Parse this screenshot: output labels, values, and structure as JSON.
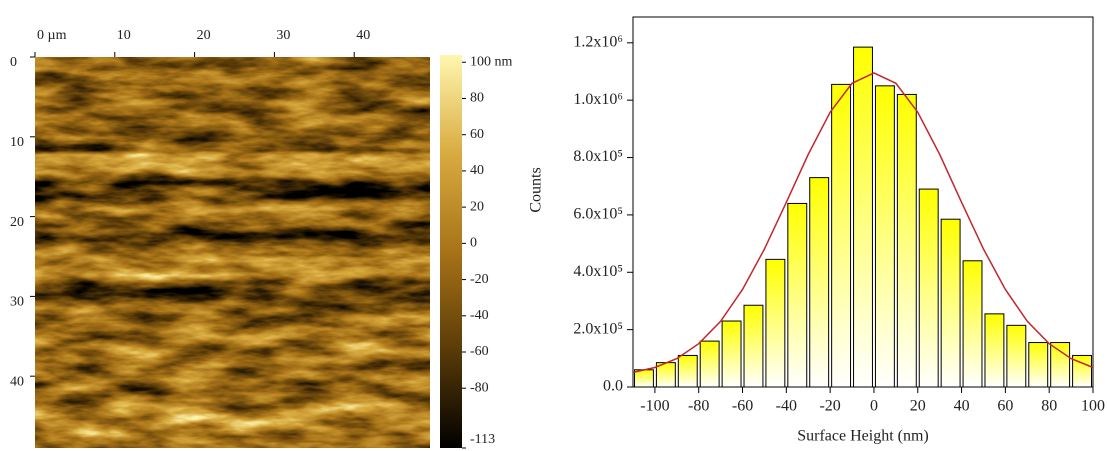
{
  "chart_data": [
    {
      "type": "image",
      "xlim": [
        0,
        49.5
      ],
      "ylim": [
        0,
        49
      ],
      "xticks": [
        {
          "value": 0,
          "label": "0 µm"
        },
        10,
        20,
        30,
        40
      ],
      "yticks": [
        0,
        10,
        20,
        30,
        40
      ],
      "colorbar": {
        "clim": [
          -113,
          104
        ],
        "ticks": [
          {
            "value": 100,
            "label": "100 nm"
          },
          80,
          60,
          40,
          20,
          0,
          -20,
          -40,
          -60,
          -80,
          -113
        ],
        "colormap": [
          "#000000",
          "#5a3b08",
          "#a87318",
          "#d9ab40",
          "#fff7b0"
        ]
      }
    },
    {
      "type": "histogram",
      "xlabel": "Surface Height (nm)",
      "ylabel": "Counts",
      "bins": [
        -110,
        -100,
        -90,
        -80,
        -70,
        -60,
        -50,
        -40,
        -30,
        -20,
        -10,
        0,
        10,
        20,
        30,
        40,
        50,
        60,
        70,
        80,
        90,
        100
      ],
      "counts": [
        60000,
        85000,
        110000,
        160000,
        230000,
        285000,
        445000,
        640000,
        730000,
        1055000,
        1185000,
        1050000,
        1020000,
        690000,
        585000,
        440000,
        255000,
        215000,
        155000,
        155000,
        110000
      ],
      "color": "#ffff00",
      "fit": {
        "color": "#c0282d",
        "x": [
          -110,
          -100,
          -90,
          -80,
          -70,
          -60,
          -50,
          -40,
          -30,
          -20,
          -10,
          0,
          10,
          20,
          30,
          40,
          50,
          60,
          70,
          80,
          90,
          100
        ],
        "values": [
          51000,
          68000,
          99000,
          151000,
          229000,
          340000,
          481000,
          644000,
          811000,
          958000,
          1059000,
          1095000,
          1059000,
          958000,
          811000,
          644000,
          481000,
          340000,
          229000,
          151000,
          99000,
          68000
        ]
      },
      "xlim": [
        -110,
        100
      ],
      "ylim": [
        0,
        1290000
      ],
      "xticks": [
        -100,
        -80,
        -60,
        -40,
        -20,
        0,
        20,
        40,
        60,
        80,
        100
      ],
      "yticks": [
        {
          "value": 0,
          "label": "0.0"
        },
        {
          "value": 200000,
          "label": "2.0x10⁵"
        },
        {
          "value": 400000,
          "label": "4.0x10⁵"
        },
        {
          "value": 600000,
          "label": "6.0x10⁵"
        },
        {
          "value": 800000,
          "label": "8.0x10⁵"
        },
        {
          "value": 1000000,
          "label": "1.0x10⁶"
        },
        {
          "value": 1200000,
          "label": "1.2x10⁶"
        }
      ]
    }
  ]
}
